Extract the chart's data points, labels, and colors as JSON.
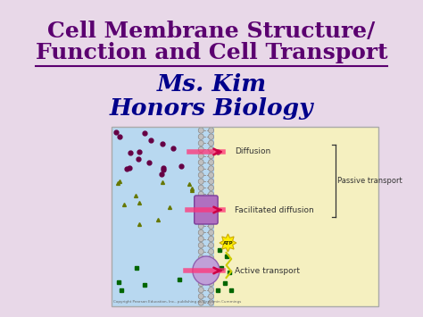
{
  "background_color": "#e8d8e8",
  "title_line1": "Cell Membrane Structure/",
  "title_line2": "Function and Cell Transport",
  "title_color": "#5b0070",
  "title_fontsize": 18,
  "subtitle1": "Ms. Kim",
  "subtitle2": "Honors Biology",
  "subtitle_color": "#00008b",
  "subtitle_fontsize": 16,
  "image_bg_left": "#b8d8f0",
  "image_bg_right": "#f5f0c0",
  "diffusion_label": "Diffusion",
  "facilitated_label": "Facilitated diffusion",
  "active_label": "Active transport",
  "passive_label": "Passive transport",
  "label_color": "#333333",
  "arrow_color": "#cc0044",
  "membrane_color": "#c0c0c0",
  "membrane_border": "#888888",
  "dot_color": "#660044",
  "triangle_color": "#667700",
  "square_color": "#006600",
  "protein_color": "#b070c0",
  "protein_border": "#7a3d9a",
  "sphere_color": "#c0a0d8",
  "sphere_border": "#9060b0",
  "atp_color": "#ffee00",
  "atp_border": "#ccaa00",
  "copyright": "Copyright Pearson Education, Inc., publishing as Benjamin Cummings"
}
